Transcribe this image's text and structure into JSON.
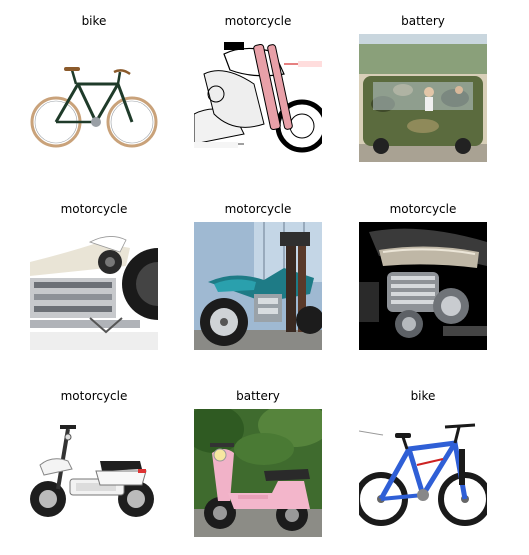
{
  "grid": {
    "items": [
      {
        "label": "bike"
      },
      {
        "label": "motorcycle"
      },
      {
        "label": "battery"
      },
      {
        "label": "motorcycle"
      },
      {
        "label": "motorcycle"
      },
      {
        "label": "motorcycle"
      },
      {
        "label": "motorcycle"
      },
      {
        "label": "battery"
      },
      {
        "label": "bike"
      }
    ]
  }
}
